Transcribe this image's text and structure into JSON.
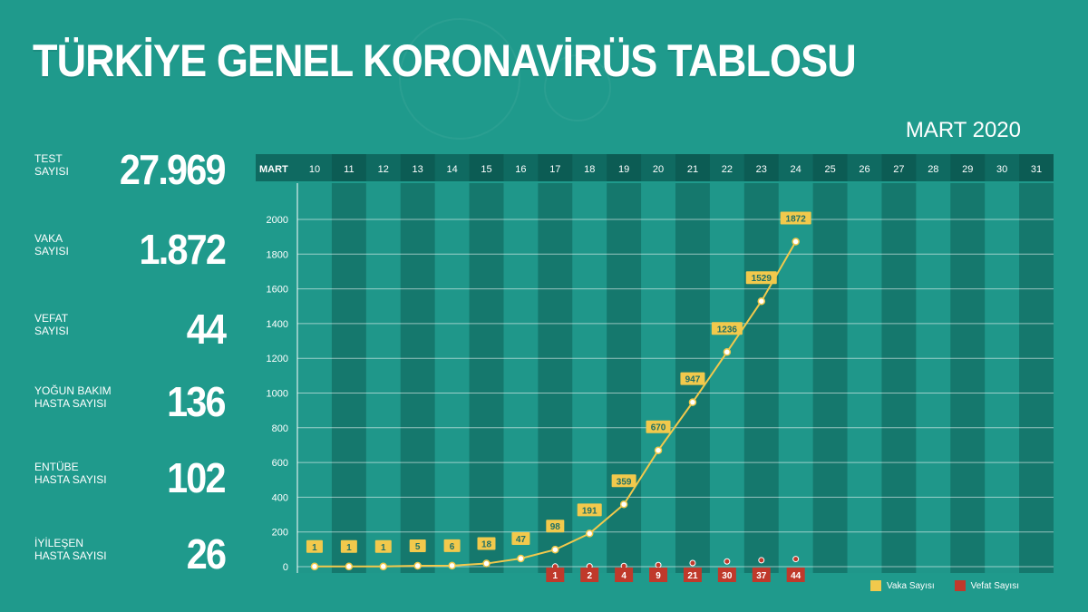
{
  "page": {
    "title": "TÜRKİYE GENEL KORONAVİRÜS TABLOSU",
    "period": "MART 2020"
  },
  "stats": [
    {
      "label": "TEST\nSAYISI",
      "value": "27.969"
    },
    {
      "label": "VAKA\nSAYISI",
      "value": "1.872"
    },
    {
      "label": "VEFAT\nSAYISI",
      "value": "44"
    },
    {
      "label": "YOĞUN BAKIM\nHASTA SAYISI",
      "value": "136"
    },
    {
      "label": "ENTÜBE\nHASTA SAYISI",
      "value": "102"
    },
    {
      "label": "İYİLEŞEN\nHASTA SAYISI",
      "value": "26"
    }
  ],
  "colors": {
    "background": "#1f9a8c",
    "column_dark": "#15786d",
    "column_light": "#1f978a",
    "header": "#0f6a61",
    "cases": "#f2c94c",
    "deaths": "#c0392b"
  },
  "chart_data": {
    "type": "line",
    "month_label": "MART",
    "days": [
      "10",
      "11",
      "12",
      "13",
      "14",
      "15",
      "16",
      "17",
      "18",
      "19",
      "20",
      "21",
      "22",
      "23",
      "24",
      "25",
      "26",
      "27",
      "28",
      "29",
      "30",
      "31"
    ],
    "ylim": [
      0,
      2000
    ],
    "yticks": [
      0,
      200,
      400,
      600,
      800,
      1000,
      1200,
      1400,
      1600,
      1800,
      2000
    ],
    "grid": true,
    "legend": "bottom-right",
    "series": [
      {
        "name": "Vaka Sayısı",
        "color": "#f2c94c",
        "x": [
          "10",
          "11",
          "12",
          "13",
          "14",
          "15",
          "16",
          "17",
          "18",
          "19",
          "20",
          "21",
          "22",
          "23",
          "24"
        ],
        "values": [
          1,
          1,
          1,
          5,
          6,
          18,
          47,
          98,
          191,
          359,
          670,
          947,
          1236,
          1529,
          1872
        ]
      },
      {
        "name": "Vefat Sayısı",
        "color": "#c0392b",
        "x": [
          "17",
          "18",
          "19",
          "20",
          "21",
          "22",
          "23",
          "24"
        ],
        "values": [
          1,
          2,
          4,
          9,
          21,
          30,
          37,
          44
        ]
      }
    ]
  }
}
